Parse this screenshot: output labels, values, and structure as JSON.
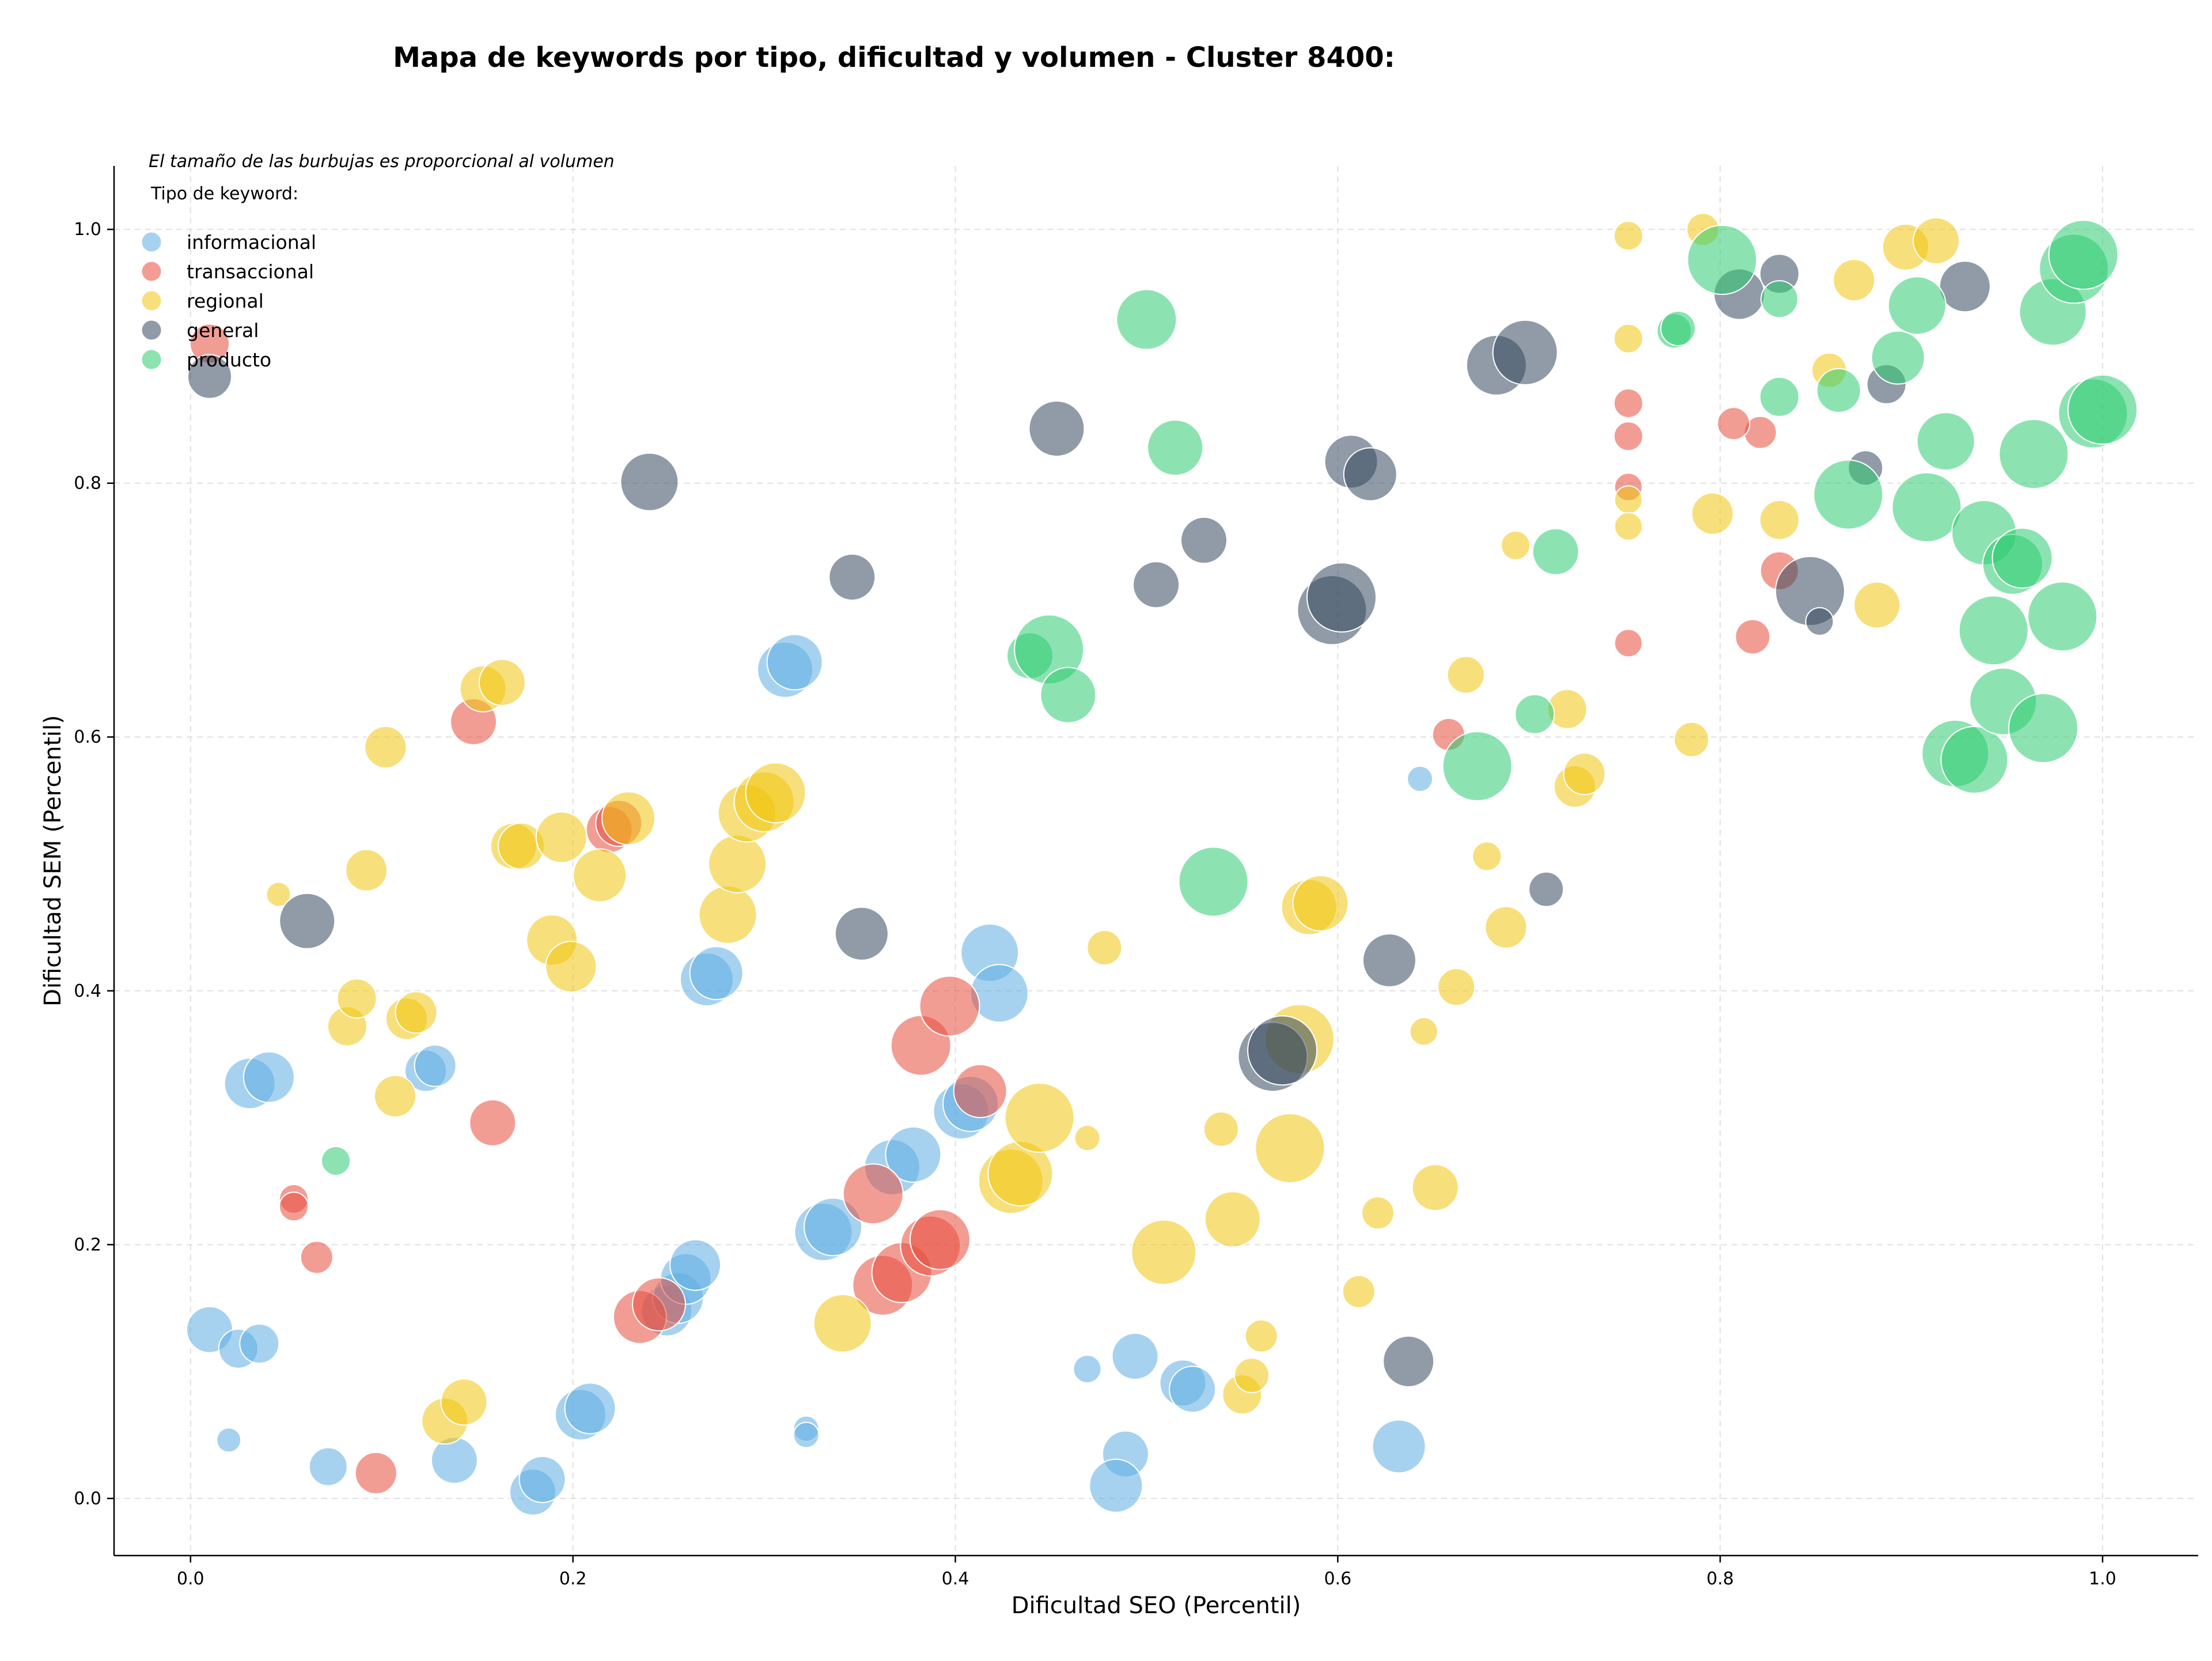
{
  "chart_data": {
    "type": "scatter",
    "title": "Mapa de keywords por tipo, dificultad y volumen - Cluster 8400:",
    "xlabel": "Dificultad SEO (Percentil)",
    "ylabel": "Dificultad SEM (Percentil)",
    "xlim": [
      -0.04,
      1.05
    ],
    "ylim": [
      -0.045,
      1.05
    ],
    "xticks": [
      "0.0",
      "0.2",
      "0.4",
      "0.6",
      "0.8",
      "1.0"
    ],
    "yticks": [
      "0.0",
      "0.2",
      "0.4",
      "0.6",
      "0.8",
      "1.0"
    ],
    "grid": true,
    "note": "El tamaño de las burbujas es proporcional al volumen",
    "legend_title": "Tipo de keyword:",
    "legend_position": "top-left",
    "colors": {
      "informacional": "#5dade2",
      "transaccional": "#e74c3c",
      "regional": "#f1c40f",
      "general": "#34495e",
      "producto": "#2ecc71"
    },
    "series": [
      {
        "name": "informacional",
        "points": [
          [
            0.01,
            0.133,
            40
          ],
          [
            0.025,
            0.118,
            34
          ],
          [
            0.036,
            0.122,
            34
          ],
          [
            0.02,
            0.046,
            21
          ],
          [
            0.072,
            0.025,
            33
          ],
          [
            0.031,
            0.327,
            44
          ],
          [
            0.041,
            0.332,
            44
          ],
          [
            0.123,
            0.337,
            36
          ],
          [
            0.128,
            0.341,
            36
          ],
          [
            0.138,
            0.03,
            40
          ],
          [
            0.179,
            0.005,
            40
          ],
          [
            0.184,
            0.015,
            40
          ],
          [
            0.204,
            0.066,
            44
          ],
          [
            0.209,
            0.071,
            44
          ],
          [
            0.249,
            0.148,
            44
          ],
          [
            0.255,
            0.158,
            44
          ],
          [
            0.259,
            0.173,
            44
          ],
          [
            0.264,
            0.184,
            44
          ],
          [
            0.27,
            0.409,
            46
          ],
          [
            0.275,
            0.414,
            46
          ],
          [
            0.311,
            0.653,
            48
          ],
          [
            0.316,
            0.659,
            48
          ],
          [
            0.331,
            0.21,
            50
          ],
          [
            0.336,
            0.214,
            50
          ],
          [
            0.322,
            0.055,
            22
          ],
          [
            0.322,
            0.05,
            22
          ],
          [
            0.367,
            0.261,
            48
          ],
          [
            0.378,
            0.271,
            48
          ],
          [
            0.403,
            0.305,
            48
          ],
          [
            0.408,
            0.311,
            48
          ],
          [
            0.418,
            0.43,
            50
          ],
          [
            0.423,
            0.398,
            50
          ],
          [
            0.469,
            0.102,
            24
          ],
          [
            0.494,
            0.112,
            40
          ],
          [
            0.489,
            0.035,
            40
          ],
          [
            0.484,
            0.01,
            46
          ],
          [
            0.519,
            0.091,
            40
          ],
          [
            0.524,
            0.086,
            40
          ],
          [
            0.632,
            0.041,
            46
          ],
          [
            0.643,
            0.567,
            22
          ]
        ]
      },
      {
        "name": "transaccional",
        "points": [
          [
            0.01,
            0.91,
            34
          ],
          [
            0.054,
            0.236,
            25
          ],
          [
            0.054,
            0.23,
            25
          ],
          [
            0.066,
            0.19,
            28
          ],
          [
            0.097,
            0.02,
            36
          ],
          [
            0.148,
            0.612,
            40
          ],
          [
            0.158,
            0.296,
            40
          ],
          [
            0.219,
            0.527,
            40
          ],
          [
            0.224,
            0.532,
            40
          ],
          [
            0.235,
            0.143,
            46
          ],
          [
            0.245,
            0.153,
            46
          ],
          [
            0.357,
            0.24,
            52
          ],
          [
            0.362,
            0.168,
            52
          ],
          [
            0.372,
            0.178,
            52
          ],
          [
            0.382,
            0.357,
            52
          ],
          [
            0.387,
            0.199,
            52
          ],
          [
            0.392,
            0.204,
            52
          ],
          [
            0.397,
            0.388,
            52
          ],
          [
            0.413,
            0.321,
            46
          ],
          [
            0.821,
            0.84,
            28
          ],
          [
            0.807,
            0.847,
            28
          ],
          [
            0.752,
            0.863,
            25
          ],
          [
            0.752,
            0.837,
            25
          ],
          [
            0.752,
            0.797,
            24
          ],
          [
            0.752,
            0.674,
            24
          ],
          [
            0.658,
            0.602,
            28
          ],
          [
            0.831,
            0.731,
            33
          ],
          [
            0.817,
            0.679,
            30
          ]
        ]
      },
      {
        "name": "regional",
        "points": [
          [
            0.046,
            0.476,
            21
          ],
          [
            0.082,
            0.372,
            34
          ],
          [
            0.087,
            0.394,
            34
          ],
          [
            0.092,
            0.495,
            36
          ],
          [
            0.102,
            0.592,
            36
          ],
          [
            0.107,
            0.317,
            36
          ],
          [
            0.113,
            0.378,
            36
          ],
          [
            0.118,
            0.383,
            36
          ],
          [
            0.133,
            0.061,
            40
          ],
          [
            0.143,
            0.076,
            40
          ],
          [
            0.153,
            0.638,
            40
          ],
          [
            0.163,
            0.643,
            40
          ],
          [
            0.169,
            0.514,
            40
          ],
          [
            0.173,
            0.514,
            40
          ],
          [
            0.189,
            0.44,
            44
          ],
          [
            0.194,
            0.521,
            44
          ],
          [
            0.199,
            0.419,
            44
          ],
          [
            0.214,
            0.491,
            46
          ],
          [
            0.229,
            0.536,
            46
          ],
          [
            0.281,
            0.46,
            50
          ],
          [
            0.286,
            0.5,
            50
          ],
          [
            0.291,
            0.54,
            50
          ],
          [
            0.3,
            0.549,
            52
          ],
          [
            0.306,
            0.556,
            52
          ],
          [
            0.341,
            0.138,
            50
          ],
          [
            0.429,
            0.25,
            56
          ],
          [
            0.434,
            0.256,
            56
          ],
          [
            0.444,
            0.3,
            60
          ],
          [
            0.469,
            0.284,
            22
          ],
          [
            0.478,
            0.434,
            30
          ],
          [
            0.509,
            0.194,
            56
          ],
          [
            0.539,
            0.291,
            30
          ],
          [
            0.545,
            0.22,
            48
          ],
          [
            0.55,
            0.082,
            34
          ],
          [
            0.555,
            0.097,
            30
          ],
          [
            0.56,
            0.128,
            28
          ],
          [
            0.575,
            0.276,
            60
          ],
          [
            0.58,
            0.362,
            60
          ],
          [
            0.585,
            0.466,
            48
          ],
          [
            0.591,
            0.469,
            48
          ],
          [
            0.611,
            0.163,
            28
          ],
          [
            0.621,
            0.225,
            28
          ],
          [
            0.645,
            0.368,
            24
          ],
          [
            0.651,
            0.245,
            40
          ],
          [
            0.662,
            0.403,
            32
          ],
          [
            0.667,
            0.649,
            32
          ],
          [
            0.678,
            0.506,
            25
          ],
          [
            0.688,
            0.45,
            36
          ],
          [
            0.693,
            0.751,
            25
          ],
          [
            0.72,
            0.622,
            34
          ],
          [
            0.724,
            0.561,
            36
          ],
          [
            0.729,
            0.571,
            36
          ],
          [
            0.752,
            0.995,
            25
          ],
          [
            0.752,
            0.914,
            25
          ],
          [
            0.752,
            0.787,
            24
          ],
          [
            0.752,
            0.766,
            24
          ],
          [
            0.791,
            1.0,
            28
          ],
          [
            0.785,
            0.598,
            30
          ],
          [
            0.796,
            0.776,
            36
          ],
          [
            0.831,
            0.771,
            34
          ],
          [
            0.857,
            0.889,
            30
          ],
          [
            0.87,
            0.96,
            36
          ],
          [
            0.882,
            0.704,
            40
          ],
          [
            0.897,
            0.986,
            40
          ],
          [
            0.913,
            0.991,
            40
          ]
        ]
      },
      {
        "name": "general",
        "points": [
          [
            0.01,
            0.884,
            38
          ],
          [
            0.061,
            0.455,
            48
          ],
          [
            0.24,
            0.801,
            50
          ],
          [
            0.346,
            0.726,
            40
          ],
          [
            0.351,
            0.445,
            46
          ],
          [
            0.453,
            0.843,
            48
          ],
          [
            0.505,
            0.72,
            40
          ],
          [
            0.53,
            0.755,
            40
          ],
          [
            0.566,
            0.348,
            60
          ],
          [
            0.571,
            0.353,
            60
          ],
          [
            0.597,
            0.7,
            60
          ],
          [
            0.602,
            0.71,
            60
          ],
          [
            0.607,
            0.817,
            46
          ],
          [
            0.617,
            0.807,
            46
          ],
          [
            0.627,
            0.424,
            46
          ],
          [
            0.637,
            0.108,
            44
          ],
          [
            0.683,
            0.893,
            52
          ],
          [
            0.698,
            0.903,
            56
          ],
          [
            0.709,
            0.48,
            30
          ],
          [
            0.81,
            0.949,
            44
          ],
          [
            0.831,
            0.965,
            34
          ],
          [
            0.847,
            0.715,
            60
          ],
          [
            0.852,
            0.691,
            24
          ],
          [
            0.876,
            0.812,
            30
          ],
          [
            0.887,
            0.878,
            34
          ],
          [
            0.928,
            0.955,
            44
          ]
        ]
      },
      {
        "name": "producto",
        "points": [
          [
            0.076,
            0.266,
            25
          ],
          [
            0.5,
            0.929,
            52
          ],
          [
            0.515,
            0.828,
            48
          ],
          [
            0.535,
            0.486,
            60
          ],
          [
            0.439,
            0.664,
            40
          ],
          [
            0.449,
            0.669,
            60
          ],
          [
            0.459,
            0.633,
            48
          ],
          [
            0.673,
            0.577,
            60
          ],
          [
            0.703,
            0.618,
            34
          ],
          [
            0.714,
            0.746,
            40
          ],
          [
            0.776,
            0.92,
            30
          ],
          [
            0.778,
            0.922,
            30
          ],
          [
            0.801,
            0.976,
            60
          ],
          [
            0.831,
            0.945,
            32
          ],
          [
            0.831,
            0.868,
            34
          ],
          [
            0.862,
            0.873,
            38
          ],
          [
            0.867,
            0.791,
            60
          ],
          [
            0.893,
            0.899,
            46
          ],
          [
            0.903,
            0.94,
            50
          ],
          [
            0.908,
            0.781,
            60
          ],
          [
            0.918,
            0.833,
            50
          ],
          [
            0.923,
            0.587,
            58
          ],
          [
            0.933,
            0.582,
            58
          ],
          [
            0.938,
            0.761,
            56
          ],
          [
            0.943,
            0.684,
            60
          ],
          [
            0.948,
            0.628,
            58
          ],
          [
            0.953,
            0.736,
            52
          ],
          [
            0.958,
            0.741,
            52
          ],
          [
            0.964,
            0.823,
            60
          ],
          [
            0.969,
            0.607,
            60
          ],
          [
            0.974,
            0.935,
            58
          ],
          [
            0.979,
            0.695,
            60
          ],
          [
            0.985,
            0.969,
            60
          ],
          [
            0.99,
            0.98,
            60
          ],
          [
            0.995,
            0.855,
            60
          ],
          [
            1.0,
            0.858,
            60
          ]
        ]
      }
    ]
  }
}
